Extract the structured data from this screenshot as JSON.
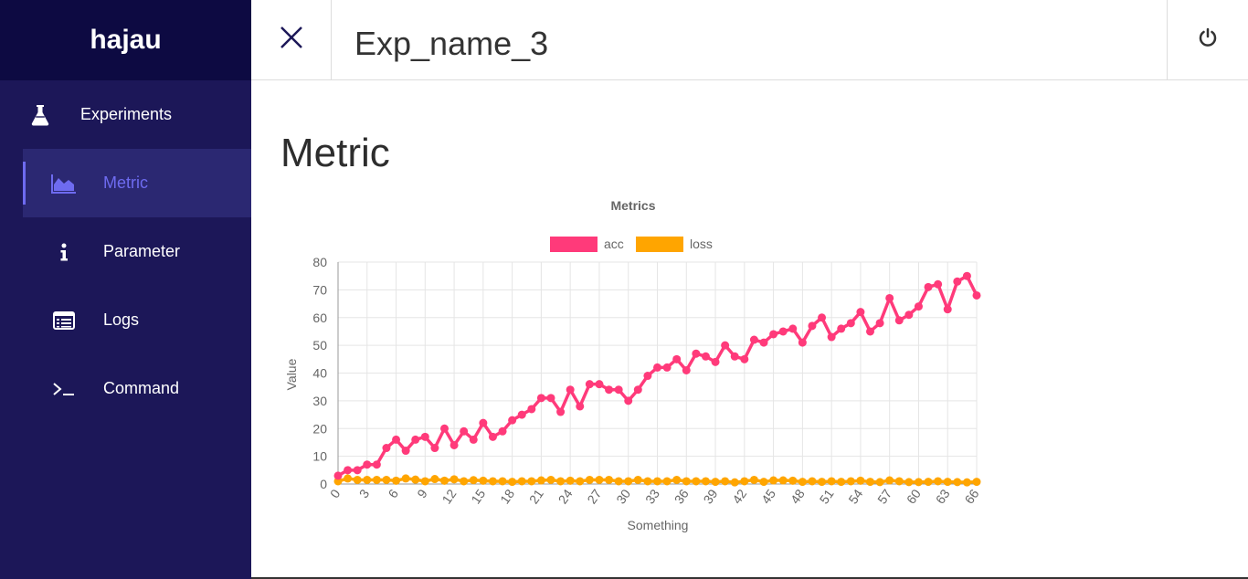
{
  "sidebar": {
    "brand": "hajau",
    "experiments_label": "Experiments",
    "items": [
      {
        "label": "Metric",
        "icon": "area-chart-icon",
        "active": true
      },
      {
        "label": "Parameter",
        "icon": "info-icon",
        "active": false
      },
      {
        "label": "Logs",
        "icon": "list-icon",
        "active": false
      },
      {
        "label": "Command",
        "icon": "terminal-icon",
        "active": false
      }
    ]
  },
  "header": {
    "experiment_name": "Exp_name_3"
  },
  "main": {
    "section_title": "Metric"
  },
  "colors": {
    "sidebar_bg": "#1c1758",
    "brand_bg": "#0d0a42",
    "active_accent": "#6e6bf0",
    "acc": "#ff3a7a",
    "loss": "#ffa500"
  },
  "chart_data": {
    "type": "line",
    "title": "Metrics",
    "xlabel": "Something",
    "ylabel": "Value",
    "ylim": [
      0,
      80
    ],
    "yticks": [
      0,
      10,
      20,
      30,
      40,
      50,
      60,
      70,
      80
    ],
    "xtick_step": 3,
    "grid": true,
    "legend": "top",
    "x": [
      0,
      1,
      2,
      3,
      4,
      5,
      6,
      7,
      8,
      9,
      10,
      11,
      12,
      13,
      14,
      15,
      16,
      17,
      18,
      19,
      20,
      21,
      22,
      23,
      24,
      25,
      26,
      27,
      28,
      29,
      30,
      31,
      32,
      33,
      34,
      35,
      36,
      37,
      38,
      39,
      40,
      41,
      42,
      43,
      44,
      45,
      46,
      47,
      48,
      49,
      50,
      51,
      52,
      53,
      54,
      55,
      56,
      57,
      58,
      59,
      60,
      61,
      62,
      63,
      64,
      65,
      66
    ],
    "series": [
      {
        "name": "acc",
        "color": "#ff3a7a",
        "values": [
          3,
          5,
          5,
          7,
          7,
          13,
          16,
          12,
          16,
          17,
          13,
          20,
          14,
          19,
          16,
          22,
          17,
          19,
          23,
          25,
          27,
          31,
          31,
          26,
          34,
          28,
          36,
          36,
          34,
          34,
          30,
          34,
          39,
          42,
          42,
          45,
          41,
          47,
          46,
          44,
          50,
          46,
          45,
          52,
          51,
          54,
          55,
          56,
          51,
          57,
          60,
          53,
          56,
          58,
          62,
          55,
          58,
          67,
          59,
          61,
          64,
          71,
          72,
          63,
          73,
          75,
          68
        ]
      },
      {
        "name": "loss",
        "color": "#ffa500",
        "values": [
          1,
          2,
          1.5,
          1.5,
          1.5,
          1.5,
          1.2,
          2,
          1.6,
          1,
          1.8,
          1.2,
          1.7,
          1,
          1.4,
          1.2,
          1,
          1,
          0.8,
          1,
          1,
          1.3,
          1.5,
          1,
          1.2,
          1,
          1.5,
          1.5,
          1.5,
          1,
          1,
          1.5,
          1,
          1,
          1,
          1.5,
          1,
          1,
          1,
          0.8,
          1,
          0.6,
          1,
          1.5,
          0.8,
          1.3,
          1.3,
          1.2,
          0.8,
          1,
          0.8,
          1,
          0.8,
          1,
          1.2,
          0.8,
          0.7,
          1.3,
          1,
          0.7,
          0.7,
          0.8,
          1,
          0.8,
          0.7,
          0.6,
          0.8
        ]
      }
    ]
  }
}
